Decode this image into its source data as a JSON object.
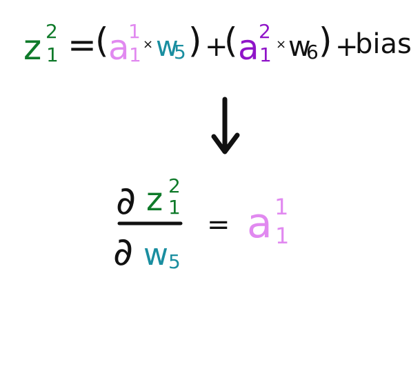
{
  "colors": {
    "z": "#0f7a2a",
    "a1": "#e189f0",
    "w": "#1a8ea0",
    "a2": "#8f14c8",
    "ink": "#111111"
  },
  "equation1": {
    "z": "z",
    "z_sup": "2",
    "z_sub": "1",
    "equals": "=",
    "lparen1": "(",
    "a1": "a",
    "a1_sup": "1",
    "a1_sub": "1",
    "times1": "×",
    "w5": "w",
    "w5_sub": "5",
    "rparen1": ")",
    "plus1": "+",
    "lparen2": "(",
    "a2": "a",
    "a2_sup": "2",
    "a2_sub": "1",
    "times2": "×",
    "w6": "w",
    "w6_sub": "6",
    "rparen2": ")",
    "plus2": "+",
    "bias": "bias"
  },
  "derivative": {
    "partial_top": "∂",
    "z": "z",
    "z_sup": "2",
    "z_sub": "1",
    "partial_bottom": "∂",
    "w": "w",
    "w_sub": "5",
    "equals": "=",
    "a": "a",
    "a_sup": "1",
    "a_sub": "1"
  },
  "arrow_icon": "down-arrow-icon"
}
